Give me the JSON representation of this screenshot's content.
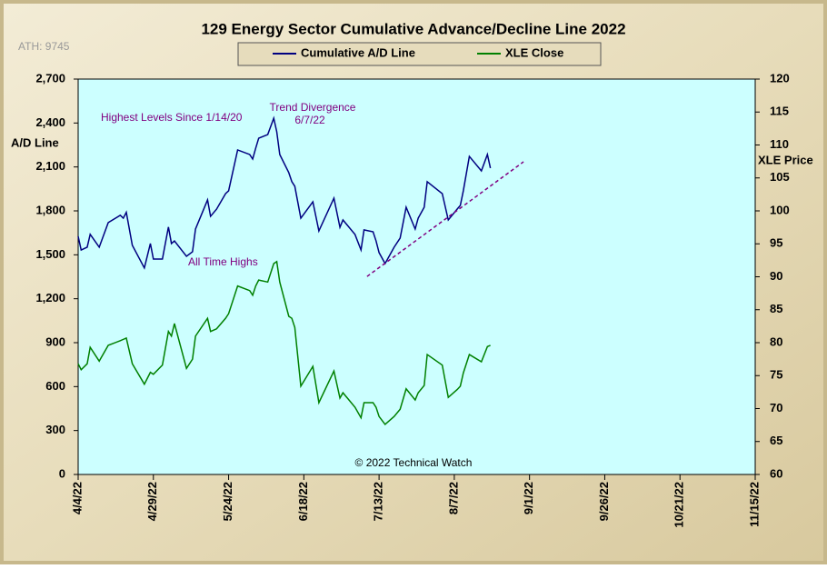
{
  "chart_data": {
    "type": "line",
    "title": "129 Energy Sector Cumulative Advance/Decline Line 2022",
    "watermark": "ATH: 9745",
    "ylabel": "A/D Line",
    "y2label": "XLE Price",
    "annotations": [
      "Highest Levels  Since 1/14/20",
      "Trend  Divergence",
      "6/7/22",
      "All Time Highs",
      "© 2022 Technical Watch"
    ],
    "x": [
      "4/4/22",
      "4/5/22",
      "4/7/22",
      "4/8/22",
      "4/11/22",
      "4/14/22",
      "4/18/22",
      "4/19/22",
      "4/20/22",
      "4/22/22",
      "4/26/22",
      "4/28/22",
      "4/29/22",
      "5/2/22",
      "5/4/22",
      "5/5/22",
      "5/6/22",
      "5/10/22",
      "5/12/22",
      "5/13/22",
      "5/17/22",
      "5/18/22",
      "5/20/22",
      "5/23/22",
      "5/24/22",
      "5/27/22",
      "5/31/22",
      "6/1/22",
      "6/2/22",
      "6/3/22",
      "6/6/22",
      "6/8/22",
      "6/9/22",
      "6/10/22",
      "6/13/22",
      "6/14/22",
      "6/15/22",
      "6/17/22",
      "6/21/22",
      "6/23/22",
      "6/28/22",
      "6/30/22",
      "7/1/22",
      "7/5/22",
      "7/7/22",
      "7/8/22",
      "7/11/22",
      "7/12/22",
      "7/13/22",
      "7/15/22",
      "7/18/22",
      "7/20/22",
      "7/22/22",
      "7/25/22",
      "7/26/22",
      "7/28/22",
      "7/29/22",
      "8/3/22",
      "8/5/22",
      "8/8/22",
      "8/9/22",
      "8/10/22",
      "8/12/22",
      "8/16/22",
      "8/18/22",
      "8/19/22"
    ],
    "series": [
      {
        "name": "Cumulative A/D Line",
        "color": "#000080",
        "values": [
          1626,
          1533,
          1552,
          1640,
          1552,
          1720,
          1770,
          1750,
          1790,
          1565,
          1410,
          1577,
          1471,
          1471,
          1690,
          1577,
          1595,
          1490,
          1521,
          1676,
          1875,
          1763,
          1812,
          1918,
          1937,
          2216,
          2185,
          2154,
          2228,
          2296,
          2321,
          2433,
          2340,
          2185,
          2061,
          2000,
          1968,
          1750,
          1862,
          1663,
          1887,
          1688,
          1738,
          1639,
          1533,
          1670,
          1657,
          1595,
          1515,
          1440,
          1552,
          1614,
          1825,
          1676,
          1750,
          1825,
          1999,
          1918,
          1738,
          1813,
          1837,
          1937,
          2172,
          2073,
          2185,
          2092
        ]
      },
      {
        "name": "XLE Close",
        "color": "#008000",
        "axis": "y2",
        "values": [
          76.8,
          75.9,
          76.8,
          79.3,
          77.2,
          79.6,
          80.3,
          80.5,
          80.7,
          76.8,
          73.7,
          75.5,
          75.2,
          76.6,
          81.7,
          81.0,
          82.9,
          76.1,
          77.5,
          81.0,
          83.7,
          81.7,
          82.1,
          83.7,
          84.4,
          88.6,
          87.9,
          87.2,
          88.6,
          89.5,
          89.2,
          92.0,
          92.3,
          89.2,
          84.0,
          83.7,
          82.3,
          73.4,
          76.4,
          70.9,
          75.7,
          71.6,
          72.4,
          70.2,
          68.6,
          70.9,
          70.9,
          70.2,
          68.8,
          67.6,
          68.8,
          69.9,
          73.0,
          71.3,
          72.4,
          73.5,
          78.2,
          76.6,
          71.7,
          72.9,
          73.4,
          75.4,
          78.2,
          77.1,
          79.4,
          79.6
        ]
      }
    ],
    "trend_line": {
      "x": [
        "7/9/22",
        "8/30/22"
      ],
      "values": [
        1352,
        2135
      ],
      "color": "#800080"
    },
    "xlim": [
      "4/4/22",
      "11/15/22"
    ],
    "xticks": [
      "4/4/22",
      "4/29/22",
      "5/24/22",
      "6/18/22",
      "7/13/22",
      "8/7/22",
      "9/1/22",
      "9/26/22",
      "10/21/22",
      "11/15/22"
    ],
    "ylim": [
      0,
      2700
    ],
    "yticks": [
      0,
      300,
      600,
      900,
      {
        "value": 1200,
        "label": "1,200"
      },
      {
        "value": 1500,
        "label": "1,500"
      },
      {
        "value": 1800,
        "label": "1,800"
      },
      {
        "value": 2100,
        "label": "2,100"
      },
      {
        "value": 2400,
        "label": "2,400"
      },
      {
        "value": 2700,
        "label": "2,700"
      }
    ],
    "y2lim": [
      60,
      120
    ],
    "y2ticks": [
      60,
      65,
      70,
      75,
      80,
      85,
      90,
      95,
      100,
      105,
      110,
      115,
      120
    ]
  }
}
